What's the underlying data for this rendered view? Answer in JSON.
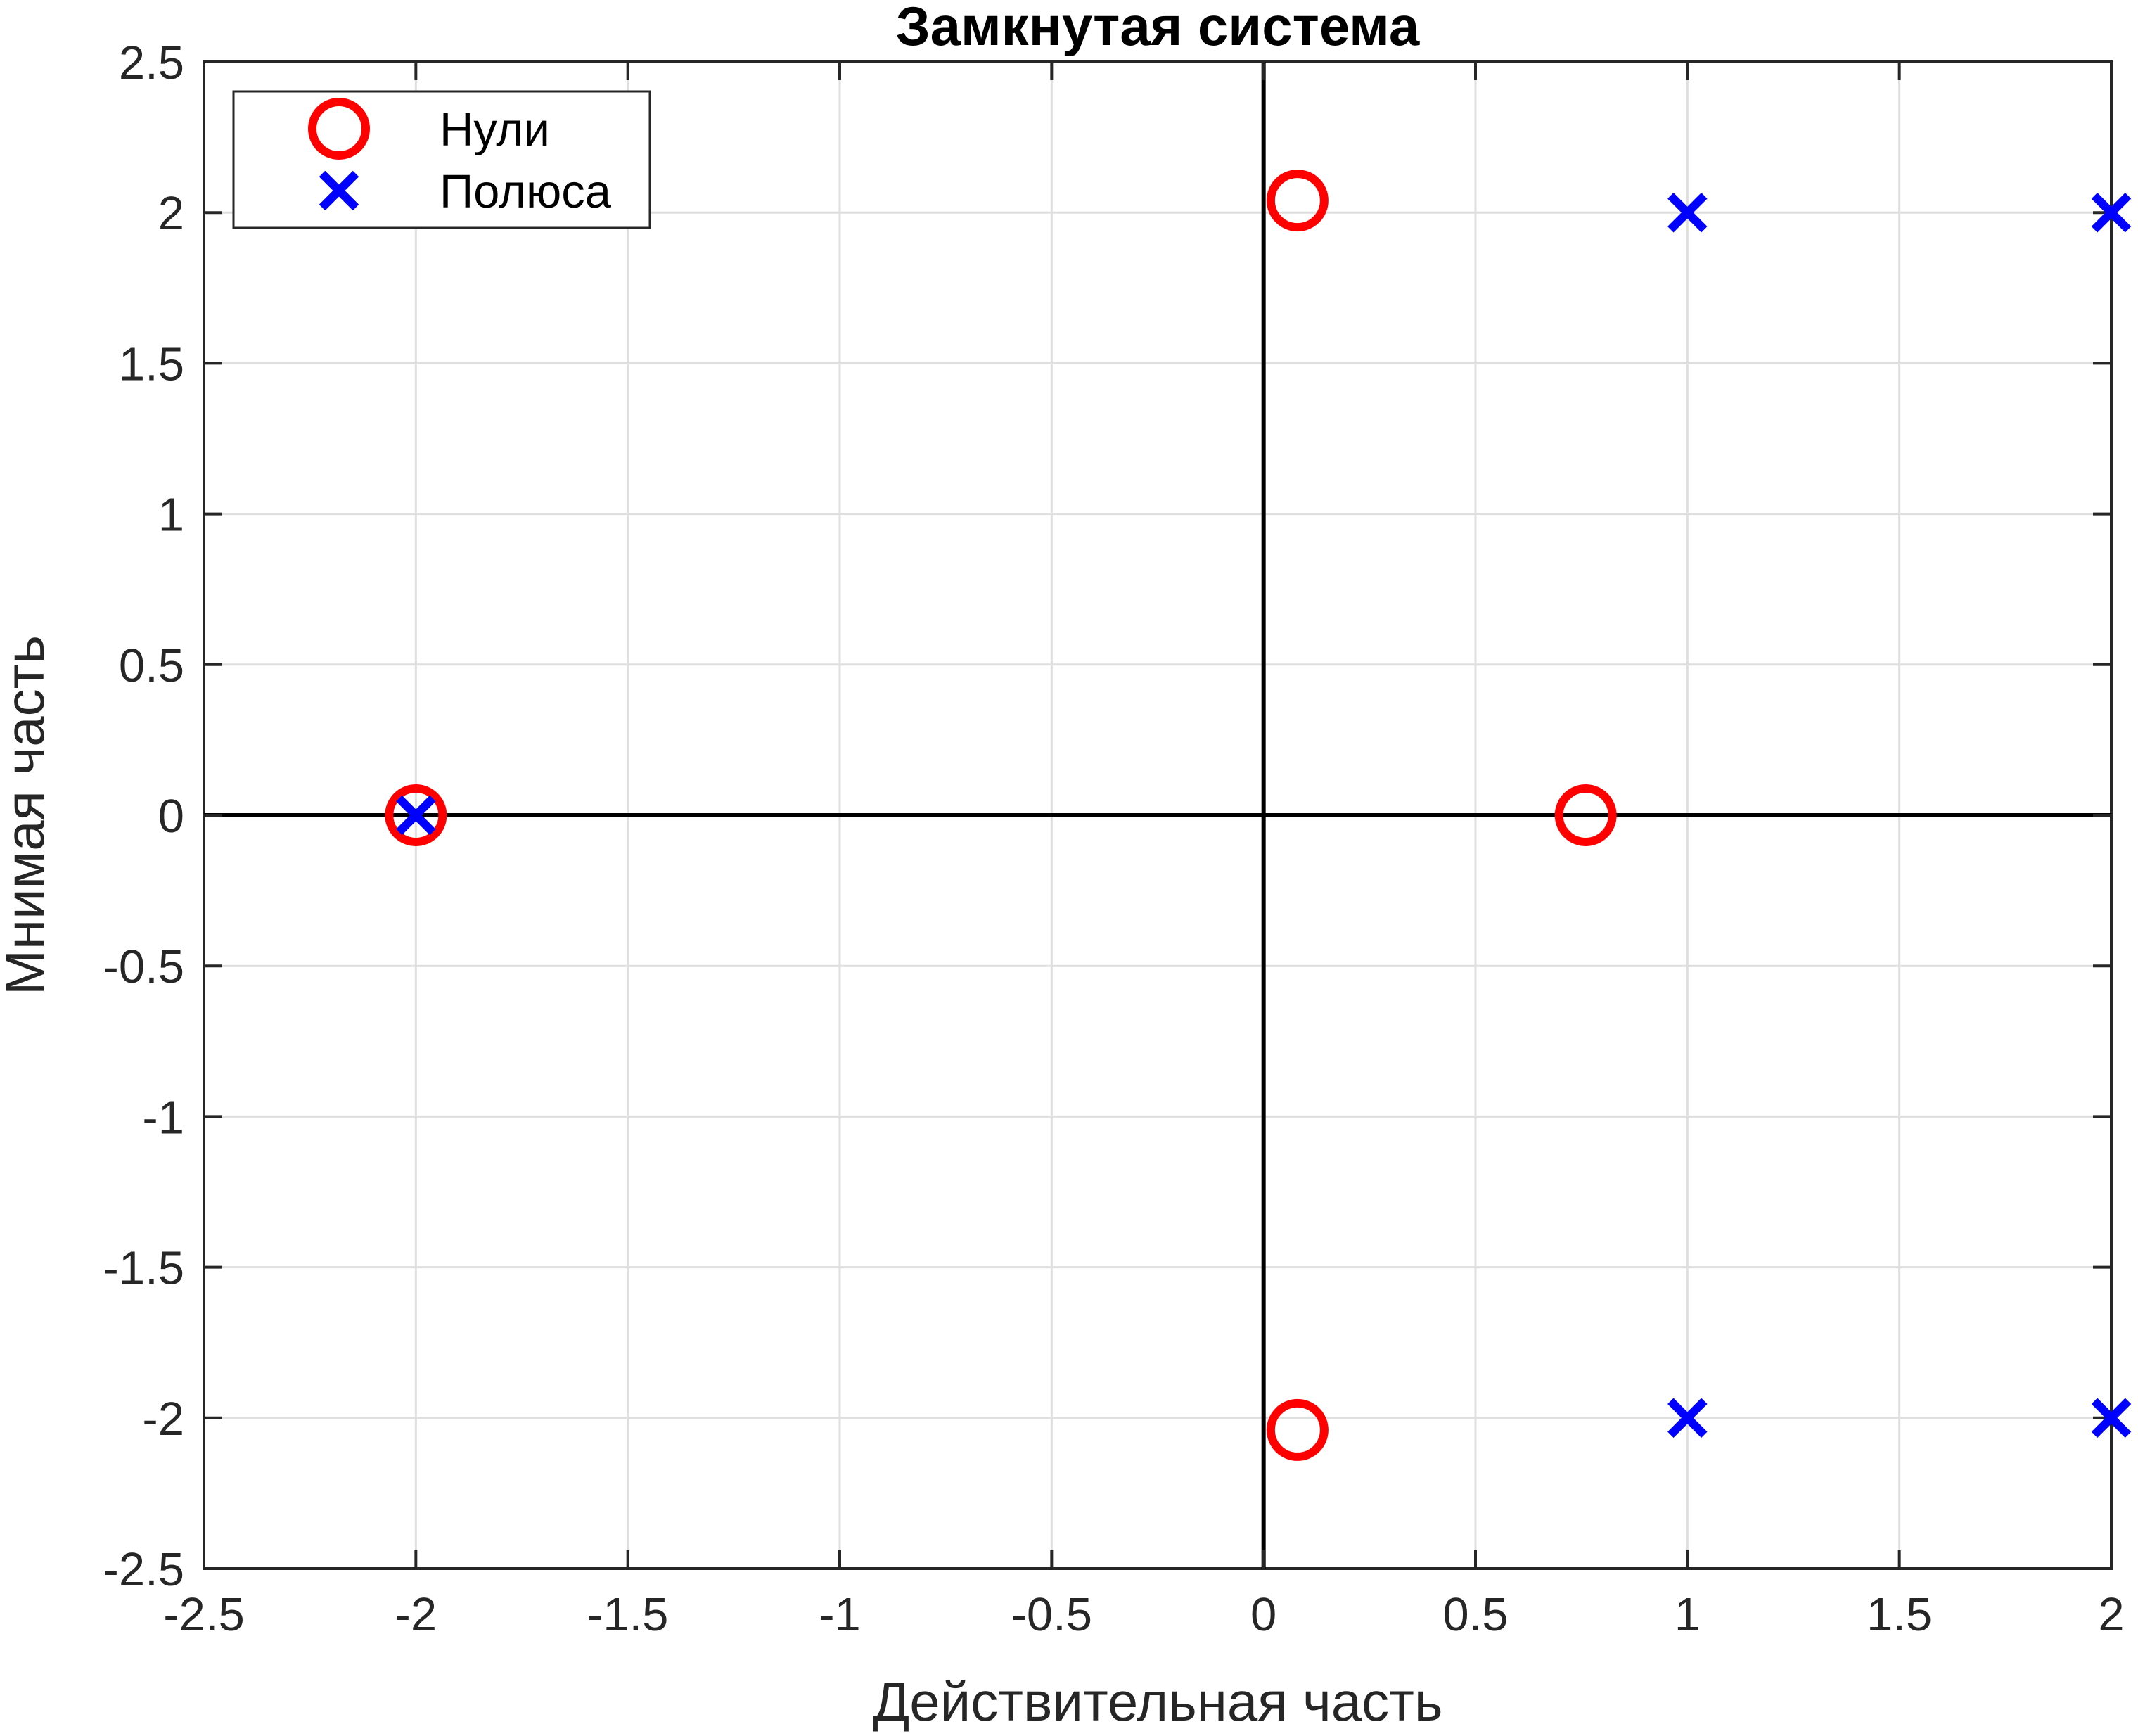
{
  "chart_data": {
    "type": "scatter",
    "title": "Замкнутая система",
    "xlabel": "Действительная часть",
    "ylabel": "Мнимая часть",
    "xlim": [
      -2.5,
      2
    ],
    "ylim": [
      -2.5,
      2.5
    ],
    "grid": true,
    "legend_location": "top-left",
    "xticks": [
      -2.5,
      -2,
      -1.5,
      -1,
      -0.5,
      0,
      0.5,
      1,
      1.5,
      2
    ],
    "yticks": [
      2.5,
      2,
      1.5,
      1,
      0.5,
      0,
      -0.5,
      -1,
      -1.5,
      -2,
      -2.5
    ],
    "xtick_labels": [
      "-2.5",
      "-2",
      "-1.5",
      "-1",
      "-0.5",
      "0",
      "0.5",
      "1",
      "1.5",
      "2"
    ],
    "ytick_labels": [
      "2.5",
      "2",
      "1.5",
      "1",
      "0.5",
      "0",
      "-0.5",
      "-1",
      "-1.5",
      "-2",
      "-2.5"
    ],
    "series": [
      {
        "name": "Нули",
        "marker": "circle",
        "color": "#ff0000",
        "points": [
          {
            "x": -2,
            "y": 0
          },
          {
            "x": 0.08,
            "y": 2.04
          },
          {
            "x": 0.08,
            "y": -2.04
          },
          {
            "x": 0.76,
            "y": 0
          }
        ]
      },
      {
        "name": "Полюса",
        "marker": "x",
        "color": "#0000ff",
        "points": [
          {
            "x": -2,
            "y": 0
          },
          {
            "x": 1,
            "y": 2
          },
          {
            "x": 1,
            "y": -2
          },
          {
            "x": 2,
            "y": 2
          },
          {
            "x": 2,
            "y": -2
          }
        ]
      }
    ]
  }
}
